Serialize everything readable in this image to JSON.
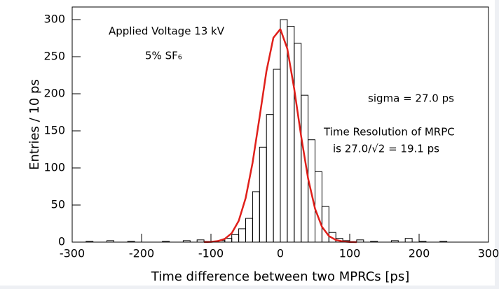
{
  "chart_data": {
    "type": "histogram",
    "x_label": "Time difference between two MPRCs [ps]",
    "y_label": "Entries / 10 ps",
    "bins": [
      -300,
      -290,
      -280,
      -270,
      -260,
      -250,
      -240,
      -230,
      -220,
      -210,
      -200,
      -190,
      -180,
      -170,
      -160,
      -150,
      -140,
      -130,
      -120,
      -110,
      -100,
      -90,
      -80,
      -70,
      -60,
      -50,
      -40,
      -30,
      -20,
      -10,
      0,
      10,
      20,
      30,
      40,
      50,
      60,
      70,
      80,
      90,
      100,
      110,
      120,
      130,
      140,
      150,
      160,
      170,
      180,
      190,
      200,
      210,
      220,
      230,
      240,
      250,
      260,
      270,
      280,
      290,
      300
    ],
    "values": [
      0,
      0,
      1,
      0,
      0,
      2,
      0,
      0,
      1,
      0,
      0,
      0,
      0,
      1,
      0,
      0,
      2,
      0,
      3,
      1,
      1,
      2,
      5,
      10,
      18,
      32,
      68,
      128,
      172,
      233,
      300,
      291,
      268,
      198,
      138,
      95,
      48,
      13,
      5,
      2,
      0,
      3,
      0,
      1,
      0,
      0,
      2,
      0,
      5,
      0,
      1,
      0,
      0,
      1,
      0,
      0,
      0,
      0,
      0,
      0
    ],
    "color": "#000000",
    "fit": {
      "color": "#e0201b",
      "x": [
        -110,
        -100,
        -90,
        -80,
        -70,
        -60,
        -50,
        -40,
        -30,
        -20,
        -10,
        0,
        10,
        20,
        30,
        40,
        50,
        60,
        70,
        80,
        90,
        100,
        110
      ],
      "values": [
        0.1,
        0.4,
        1.4,
        4.4,
        12.1,
        28.7,
        59.3,
        107,
        168,
        230.6,
        275.6,
        287.2,
        260.9,
        206.6,
        142.7,
        85.8,
        45.1,
        20.6,
        8.2,
        2.9,
        0.9,
        0.2,
        0.05
      ]
    },
    "xlim": [
      -300,
      300
    ],
    "xticks": [
      -300,
      -200,
      -100,
      0,
      100,
      200,
      300
    ],
    "ylim": [
      0,
      317
    ],
    "yticks": [
      0,
      50,
      100,
      150,
      200,
      250,
      300
    ],
    "annotations": [
      "Applied Voltage 13 kV",
      "5% SF₆",
      "sigma = 27.0 ps",
      "Time Resolution of MRPC",
      "is 27.0/√2 = 19.1 ps"
    ]
  }
}
